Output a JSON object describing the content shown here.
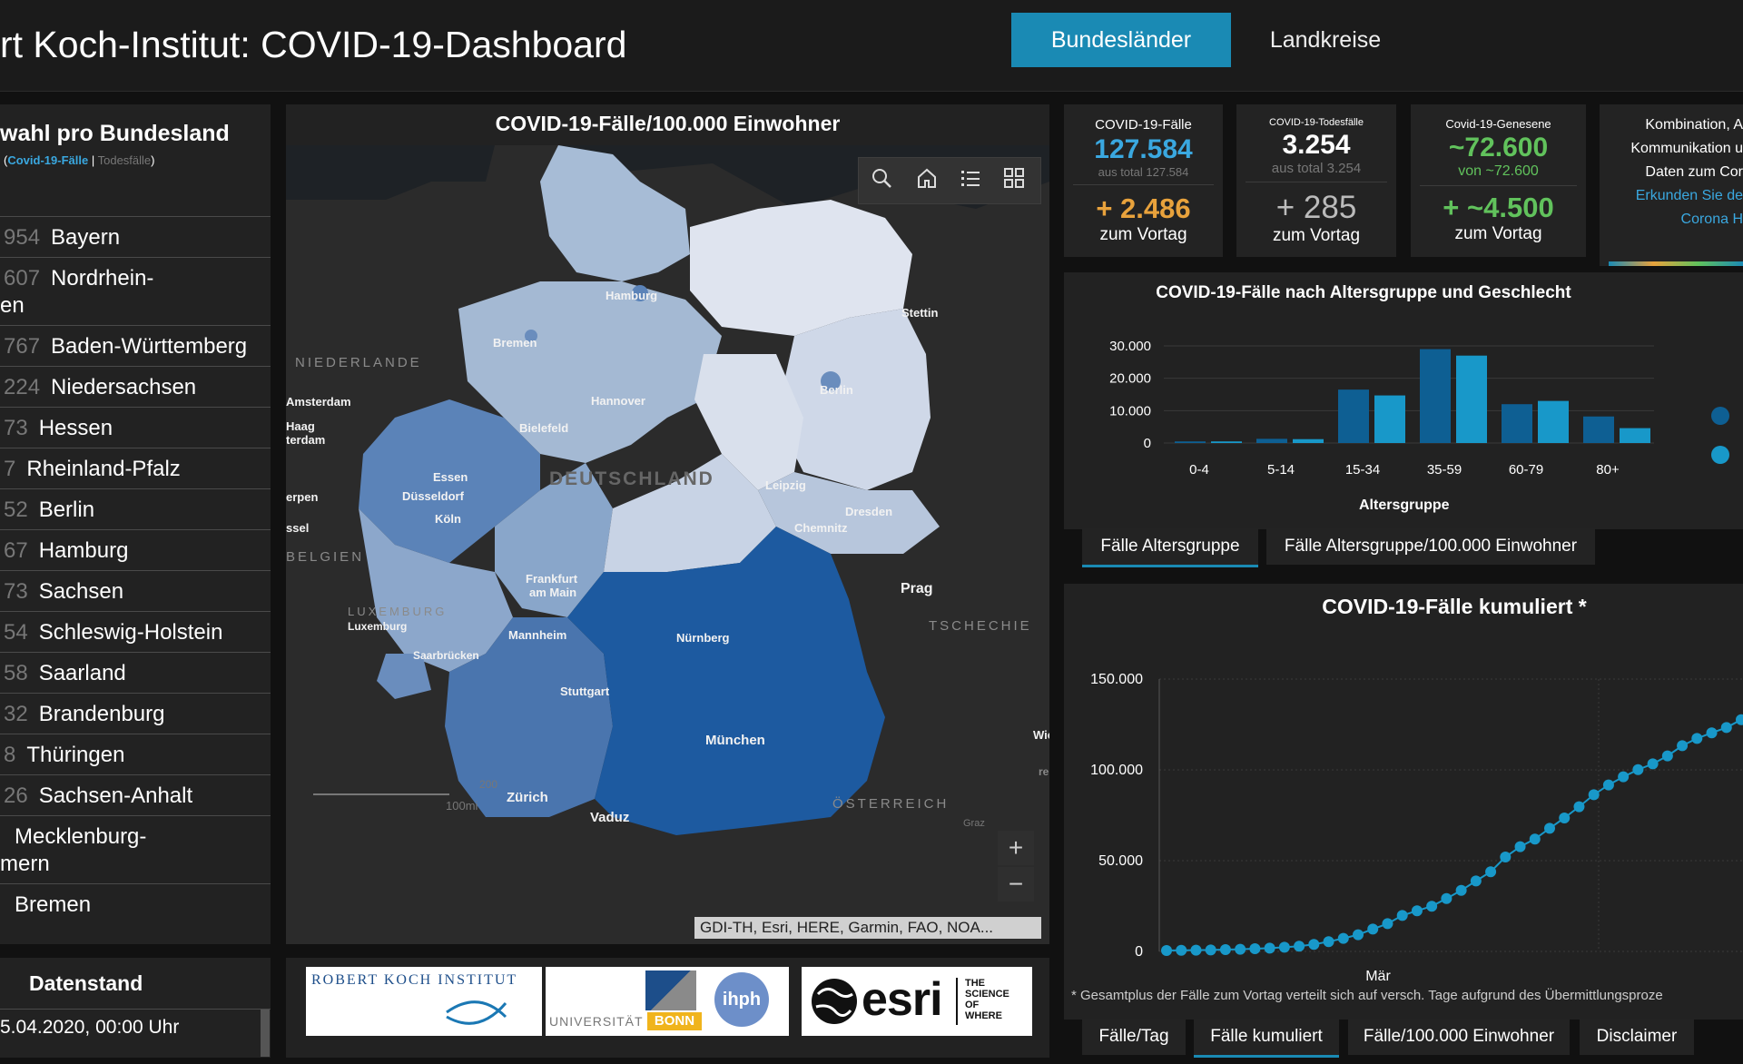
{
  "header": {
    "title": "rt Koch-Institut: COVID-19-Dashboard",
    "tab_active": "Bundesländer",
    "tab_other": "Landkreise"
  },
  "left": {
    "title": "wahl pro Bundesland",
    "sub_cases": "Covid-19-Fälle",
    "sub_sep": "|",
    "sub_deaths": "Todesfälle",
    "sub_open": "(",
    "sub_close": ")",
    "rows": [
      {
        "num": "954",
        "name": "Bayern"
      },
      {
        "num": "607",
        "name": "Nordrhein-",
        "name2": "en"
      },
      {
        "num": "767",
        "name": "Baden-Württemberg"
      },
      {
        "num": "224",
        "name": "Niedersachsen"
      },
      {
        "num": "73",
        "name": "Hessen"
      },
      {
        "num": "7",
        "name": "Rheinland-Pfalz"
      },
      {
        "num": "52",
        "name": "Berlin"
      },
      {
        "num": "67",
        "name": "Hamburg"
      },
      {
        "num": "73",
        "name": "Sachsen"
      },
      {
        "num": "54",
        "name": "Schleswig-Holstein"
      },
      {
        "num": "58",
        "name": "Saarland"
      },
      {
        "num": "32",
        "name": "Brandenburg"
      },
      {
        "num": "8",
        "name": "Thüringen"
      },
      {
        "num": "26",
        "name": "Sachsen-Anhalt"
      },
      {
        "num": "",
        "name": "Mecklenburg-",
        "name2": "mern"
      },
      {
        "num": "",
        "name": "Bremen"
      }
    ]
  },
  "datenstand": {
    "title": "Datenstand",
    "value": "5.04.2020, 00:00 Uhr"
  },
  "map": {
    "title": "COVID-19-Fälle/100.000 Einwohner",
    "attribution": "GDI-TH, Esri, HERE, Garmin, FAO, NOA...",
    "labels": {
      "hamburg": "Hamburg",
      "bremen": "Bremen",
      "hannover": "Hannover",
      "berlin": "Berlin",
      "bielefeld": "Bielefeld",
      "essen": "Essen",
      "duesseldorf": "Düsseldorf",
      "koeln": "Köln",
      "deutschland": "DEUTSCHLAND",
      "leipzig": "Leipzig",
      "dresden": "Dresden",
      "chemnitz": "Chemnitz",
      "frankfurt1": "Frankfurt",
      "frankfurt2": "am Main",
      "mannheim": "Mannheim",
      "nuernberg": "Nürnberg",
      "stuttgart": "Stuttgart",
      "muenchen": "München",
      "saarbruecken": "Saarbrücken",
      "luxemburg1": "LUXEMBURG",
      "luxemburg2": "Luxemburg",
      "niederlande": "NIEDERLANDE",
      "amsterdam": "Amsterdam",
      "haag": "Haag",
      "terdam": "terdam",
      "erpen": "erpen",
      "ssel": "ssel",
      "belgien": "BELGIEN",
      "stettin": "Stettin",
      "prag": "Prag",
      "tschechie": "TSCHECHIE",
      "zuerich": "Zürich",
      "vaduz": "Vaduz",
      "oesterreich": "ÖSTERREICH",
      "scale1": "200",
      "scale2": "100mi",
      "wie": "Wie",
      "graz": "Graz",
      "re": "re"
    }
  },
  "kpis": [
    {
      "label": "COVID-19-Fälle",
      "value": "127.584",
      "sub": "aus total 127.584",
      "delta": "+ 2.486",
      "zv": "zum Vortag"
    },
    {
      "label": "COVID-19-Todesfälle",
      "value": "3.254",
      "sub": "aus total 3.254",
      "delta": "+ 285",
      "zv": "zum Vortag"
    },
    {
      "label": "Covid-19-Genesene",
      "value": "~72.600",
      "sub": "von ~72.600",
      "delta": "+ ~4.500",
      "zv": "zum Vortag"
    }
  ],
  "info": {
    "l1": "Kombination, A",
    "l2": "Kommunikation u",
    "l3": "Daten zum Cor",
    "l4": "Erkunden Sie de",
    "l5": "Corona H"
  },
  "age_tabs": {
    "t1": "Fälle Altersgruppe",
    "t2": "Fälle Altersgruppe/100.000 Einwohner"
  },
  "bottom_tabs": {
    "t1": "Fälle/Tag",
    "t2": "Fälle kumuliert",
    "t3": "Fälle/100.000 Einwohner",
    "t4": "Disclaimer"
  },
  "footnote": "* Gesamtplus der Fälle zum Vortag verteilt sich auf versch. Tage aufgrund des Übermittlungsproze",
  "logos": {
    "rki": "ROBERT KOCH INSTITUT",
    "bonn1": "UNIVERSITÄT",
    "bonn2": "BONN",
    "ihph": "ihph",
    "esri": "esri",
    "tsw1": "THE",
    "tsw2": "SCIENCE",
    "tsw3": "OF",
    "tsw4": "WHERE"
  },
  "colors": {
    "accent": "#1a8ab4",
    "orange": "#e8a23c",
    "green": "#61c25c",
    "blue_text": "#3aa8e0",
    "male": "#0e5f93",
    "female": "#1898c9"
  },
  "chart_data": [
    {
      "type": "bar",
      "title": "COVID-19-Fälle nach Altersgruppe und Geschlecht",
      "xlabel": "Altersgruppe",
      "ylabel": "",
      "categories": [
        "0-4",
        "5-14",
        "15-34",
        "35-59",
        "60-79",
        "80+"
      ],
      "ylim": [
        0,
        30000
      ],
      "yticks": [
        "30.000",
        "20.000",
        "10.000",
        "0"
      ],
      "series": [
        {
          "values": [
            500,
            1300,
            16500,
            29000,
            12000,
            8200
          ]
        },
        {
          "values": [
            500,
            1200,
            14700,
            27000,
            13000,
            4600
          ]
        }
      ],
      "legend_placement": "right",
      "grid": true
    },
    {
      "type": "line",
      "title": "COVID-19-Fälle kumuliert *",
      "ylim": [
        0,
        150000
      ],
      "yticks": [
        "150.000",
        "100.000",
        "50.000",
        "0"
      ],
      "xlabel_tick": "Mär",
      "values": [
        500,
        600,
        700,
        800,
        1000,
        1200,
        1500,
        1800,
        2300,
        2900,
        3900,
        5400,
        7200,
        9200,
        12300,
        15300,
        19800,
        22400,
        24900,
        29100,
        33600,
        38800,
        43900,
        52000,
        57700,
        61900,
        67800,
        73500,
        79700,
        86300,
        91700,
        96200,
        100100,
        103300,
        107700,
        113300,
        117300,
        120400,
        123300,
        127600
      ],
      "legend_placement": "none",
      "grid": true
    }
  ]
}
